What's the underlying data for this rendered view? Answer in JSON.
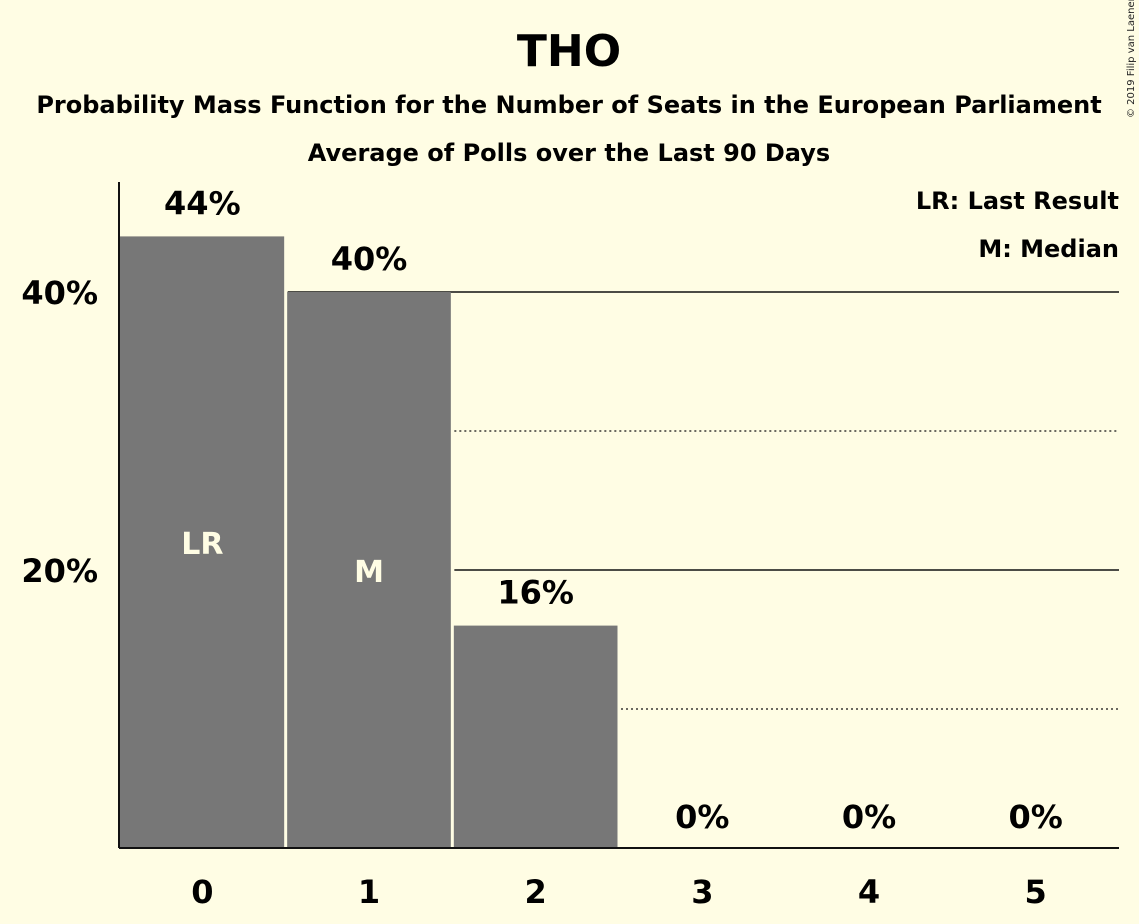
{
  "chart_data": {
    "type": "bar",
    "title": "THO",
    "subtitle": "Probability Mass Function for the Number of Seats in the European Parliament",
    "subtitle2": "Average of Polls over the Last 90 Days",
    "categories": [
      "0",
      "1",
      "2",
      "3",
      "4",
      "5"
    ],
    "values": [
      44,
      40,
      16,
      0,
      0,
      0
    ],
    "value_labels": [
      "44%",
      "40%",
      "16%",
      "0%",
      "0%",
      "0%"
    ],
    "bar_annotations": [
      "LR",
      "M",
      "",
      "",
      "",
      ""
    ],
    "y_ticks": [
      20,
      40
    ],
    "y_tick_labels": [
      "20%",
      "40%"
    ],
    "y_minor_gridlines": [
      10,
      30
    ],
    "ylim": [
      0,
      48
    ],
    "legend": [
      "LR: Last Result",
      "M: Median"
    ],
    "legend_position": "top-right",
    "grid": true,
    "colors": {
      "background": "#fffde4",
      "bar": "#777777",
      "text": "#111111"
    },
    "copyright": "© 2019 Filip van Laenen"
  }
}
